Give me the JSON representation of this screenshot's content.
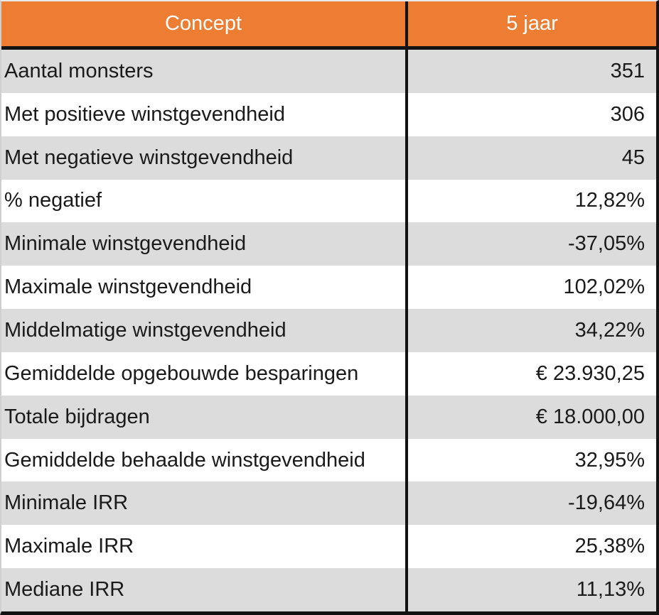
{
  "colors": {
    "header_bg": "#ec7d33",
    "header_text": "#ffffff",
    "row_stripe_gray": "#dcdcdc",
    "row_white": "#ffffff",
    "border_black": "#131313",
    "body_text": "#1a1a1a"
  },
  "table": {
    "header": {
      "concept": "Concept",
      "period": "5 jaar"
    },
    "rows": [
      {
        "concept": "Aantal monsters",
        "value": "351"
      },
      {
        "concept": "Met positieve winstgevendheid",
        "value": "306"
      },
      {
        "concept": "Met negatieve winstgevendheid",
        "value": "45"
      },
      {
        "concept": "% negatief",
        "value": "12,82%"
      },
      {
        "concept": "Minimale winstgevendheid",
        "value": "-37,05%"
      },
      {
        "concept": "Maximale winstgevendheid",
        "value": "102,02%"
      },
      {
        "concept": "Middelmatige winstgevendheid",
        "value": "34,22%"
      },
      {
        "concept": "Gemiddelde opgebouwde besparingen",
        "value": "€ 23.930,25"
      },
      {
        "concept": "Totale bijdragen",
        "value": "€ 18.000,00"
      },
      {
        "concept": "Gemiddelde behaalde winstgevendheid",
        "value": "32,95%"
      },
      {
        "concept": "Minimale IRR",
        "value": "-19,64%"
      },
      {
        "concept": "Maximale IRR",
        "value": "25,38%"
      },
      {
        "concept": "Mediane IRR",
        "value": "11,13%"
      }
    ]
  },
  "chart_data": {
    "type": "table",
    "title": "",
    "columns": [
      "Concept",
      "5 jaar"
    ],
    "rows": [
      [
        "Aantal monsters",
        "351"
      ],
      [
        "Met positieve winstgevendheid",
        "306"
      ],
      [
        "Met negatieve winstgevendheid",
        "45"
      ],
      [
        "% negatief",
        "12,82%"
      ],
      [
        "Minimale winstgevendheid",
        "-37,05%"
      ],
      [
        "Maximale winstgevendheid",
        "102,02%"
      ],
      [
        "Middelmatige winstgevendheid",
        "34,22%"
      ],
      [
        "Gemiddelde opgebouwde besparingen",
        "€ 23.930,25"
      ],
      [
        "Totale bijdragen",
        "€ 18.000,00"
      ],
      [
        "Gemiddelde behaalde winstgevendheid",
        "32,95%"
      ],
      [
        "Minimale IRR",
        "-19,64%"
      ],
      [
        "Maximale IRR",
        "25,38%"
      ],
      [
        "Mediane IRR",
        "11,13%"
      ]
    ],
    "layout": {
      "header_background": "#ec7d33",
      "stripe_colors": [
        "#dcdcdc",
        "#ffffff"
      ],
      "value_alignment": "right"
    }
  }
}
